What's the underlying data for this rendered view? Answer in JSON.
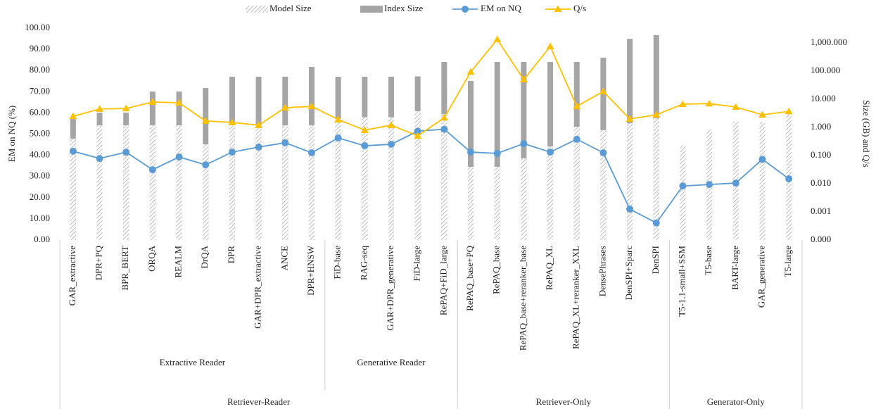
{
  "chart_data": {
    "type": "combo",
    "y_label": "EM on NQ (%)",
    "y2_label": "Size (GB) and Q/s",
    "categories": [
      "GAR_extractive",
      "DPR+PQ",
      "BPR_BERT",
      "ORQA",
      "REALM",
      "DrQA",
      "DPR",
      "GAR+DPR_extractive",
      "ANCE",
      "DPR+HNSW",
      "FiD-base",
      "RAG-seq",
      "GAR+DPR_generative",
      "FiD-large",
      "RePAQ+FiD_large",
      "RePAQ_base+PQ",
      "RePAQ_base",
      "RePAQ_base+reranker_base",
      "RePAQ_XL",
      "RePAQ_XL+reranker_XXL",
      "DensePhrases",
      "DenSPI+Sparc",
      "DenSPI",
      "T5-1.1-small+SSM",
      "T5-base",
      "BART-large",
      "GAR_generative",
      "T5-large"
    ],
    "groups": [
      [
        {
          "name": "Extractive Reader",
          "size": 10
        },
        {
          "name": "Generative Reader",
          "size": 5
        }
      ],
      [
        {
          "name": "Retriever-Reader",
          "size": 15
        },
        {
          "name": "Retriever-Only",
          "size": 8
        },
        {
          "name": "Generator-Only",
          "size": 5
        }
      ]
    ],
    "series": [
      {
        "name": "Model Size",
        "type": "bar",
        "axis": "y2",
        "color": "#a5a5a5",
        "pattern": "hatch",
        "values": [
          0.4,
          1.19,
          1.19,
          1.19,
          1.19,
          0.25,
          1.19,
          1.19,
          1.19,
          1.19,
          2.1,
          2.3,
          2.3,
          3.76,
          3,
          0.04,
          0.04,
          0.08,
          0.21,
          1.06,
          0.8,
          1.4,
          2.1,
          0.23,
          0.85,
          1.6,
          1.6,
          3.35
        ]
      },
      {
        "name": "Index Size",
        "type": "bar",
        "axis": "y2",
        "color": "#a5a5a5",
        "values": [
          2.1,
          3.35,
          3.35,
          18.8,
          18.8,
          25,
          63,
          63,
          63,
          141,
          63,
          63,
          63,
          65,
          211,
          45,
          211,
          211,
          211,
          211,
          300,
          1400,
          1900,
          null,
          null,
          null,
          null,
          null
        ]
      },
      {
        "name": "EM on NQ",
        "type": "line",
        "color": "#5b9bd5",
        "marker": "circle",
        "values": [
          41.9,
          38.5,
          41.5,
          33.2,
          39.2,
          35.5,
          41.5,
          43.9,
          45.9,
          41.2,
          48.2,
          44.5,
          45.2,
          51.4,
          52.3,
          41.5,
          40.9,
          45.5,
          41.5,
          47.6,
          41.2,
          14.6,
          8.1,
          25.5,
          26.2,
          26.9,
          38.1,
          28.9
        ]
      },
      {
        "name": "Q/s",
        "type": "line",
        "axis": "y2",
        "color": "#ffc000",
        "marker": "triangle",
        "values": [
          2.5,
          4.5,
          4.7,
          8,
          7.5,
          1.7,
          1.5,
          1.2,
          5,
          5.6,
          1.9,
          0.8,
          1.2,
          0.5,
          2.2,
          94,
          1330,
          50,
          750,
          5.6,
          19,
          2,
          2.8,
          6.7,
          7,
          5.3,
          2.8,
          3.7
        ]
      }
    ],
    "ylim": [
      0,
      100
    ],
    "yticks": [
      {
        "value": 0,
        "label": "0.00"
      },
      {
        "value": 10,
        "label": "10.00"
      },
      {
        "value": 20,
        "label": "20.00"
      },
      {
        "value": 30,
        "label": "30.00"
      },
      {
        "value": 40,
        "label": "40.00"
      },
      {
        "value": 50,
        "label": "50.00"
      },
      {
        "value": 60,
        "label": "60.00"
      },
      {
        "value": 70,
        "label": "70.00"
      },
      {
        "value": 80,
        "label": "80.00"
      },
      {
        "value": 90,
        "label": "90.00"
      },
      {
        "value": 100,
        "label": "100.00"
      }
    ],
    "y2lim": [
      0.0001,
      3350
    ],
    "y2log": true,
    "y2ticks": [
      {
        "value": 0.0001,
        "label": "0.000"
      },
      {
        "value": 0.001,
        "label": "0.001"
      },
      {
        "value": 0.01,
        "label": "0.010"
      },
      {
        "value": 0.1,
        "label": "0.100"
      },
      {
        "value": 1,
        "label": "1.000"
      },
      {
        "value": 10,
        "label": "10.000"
      },
      {
        "value": 100,
        "label": "100.000"
      },
      {
        "value": 1000,
        "label": "1,000.000"
      }
    ],
    "legend": "top",
    "grid": false
  }
}
